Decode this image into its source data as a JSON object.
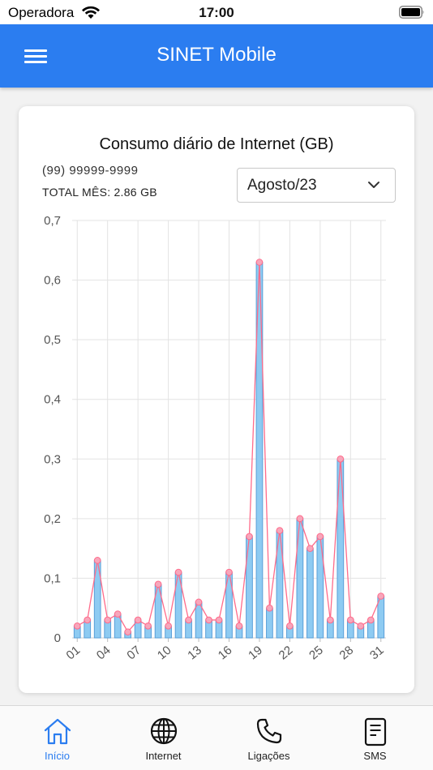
{
  "status_bar": {
    "carrier": "Operadora",
    "time": "17:00"
  },
  "app_bar": {
    "title": "SINET Mobile",
    "menu_icon": "hamburger-menu-icon"
  },
  "card": {
    "title": "Consumo diário de Internet (GB)",
    "phone": "(99) 99999-9999",
    "total_label": "TOTAL MÊS:",
    "total_value": "2.86 GB",
    "month_selected": "Agosto/23"
  },
  "chart_data": {
    "type": "bar",
    "overlay": "line",
    "y_tick_labels": [
      "0",
      "0,1",
      "0,2",
      "0,3",
      "0,4",
      "0,5",
      "0,6",
      "0,7"
    ],
    "ylim": [
      0,
      0.7
    ],
    "x_tick_labels": [
      "01",
      "04",
      "07",
      "10",
      "13",
      "16",
      "19",
      "22",
      "25",
      "28",
      "31"
    ],
    "categories": [
      "01",
      "02",
      "03",
      "04",
      "05",
      "06",
      "07",
      "08",
      "09",
      "10",
      "11",
      "12",
      "13",
      "14",
      "15",
      "16",
      "17",
      "18",
      "19",
      "20",
      "21",
      "22",
      "23",
      "24",
      "25",
      "26",
      "27",
      "28",
      "29",
      "30",
      "31"
    ],
    "values": [
      0.02,
      0.03,
      0.13,
      0.03,
      0.04,
      0.01,
      0.03,
      0.02,
      0.09,
      0.02,
      0.11,
      0.03,
      0.06,
      0.03,
      0.03,
      0.11,
      0.02,
      0.17,
      0.63,
      0.05,
      0.18,
      0.02,
      0.2,
      0.15,
      0.17,
      0.03,
      0.3,
      0.03,
      0.02,
      0.03,
      0.07
    ],
    "bar_color": "#8ecbf2",
    "bar_edge_color": "#5a9fd8",
    "line_color": "#ff6b8a",
    "grid": true
  },
  "bottom_nav": {
    "items": [
      {
        "label": "Início",
        "icon": "home-icon",
        "active": true
      },
      {
        "label": "Internet",
        "icon": "globe-icon",
        "active": false
      },
      {
        "label": "Ligações",
        "icon": "phone-icon",
        "active": false
      },
      {
        "label": "SMS",
        "icon": "message-icon",
        "active": false
      }
    ]
  },
  "colors": {
    "primary": "#2b7df0",
    "active_nav": "#2b7df0"
  }
}
